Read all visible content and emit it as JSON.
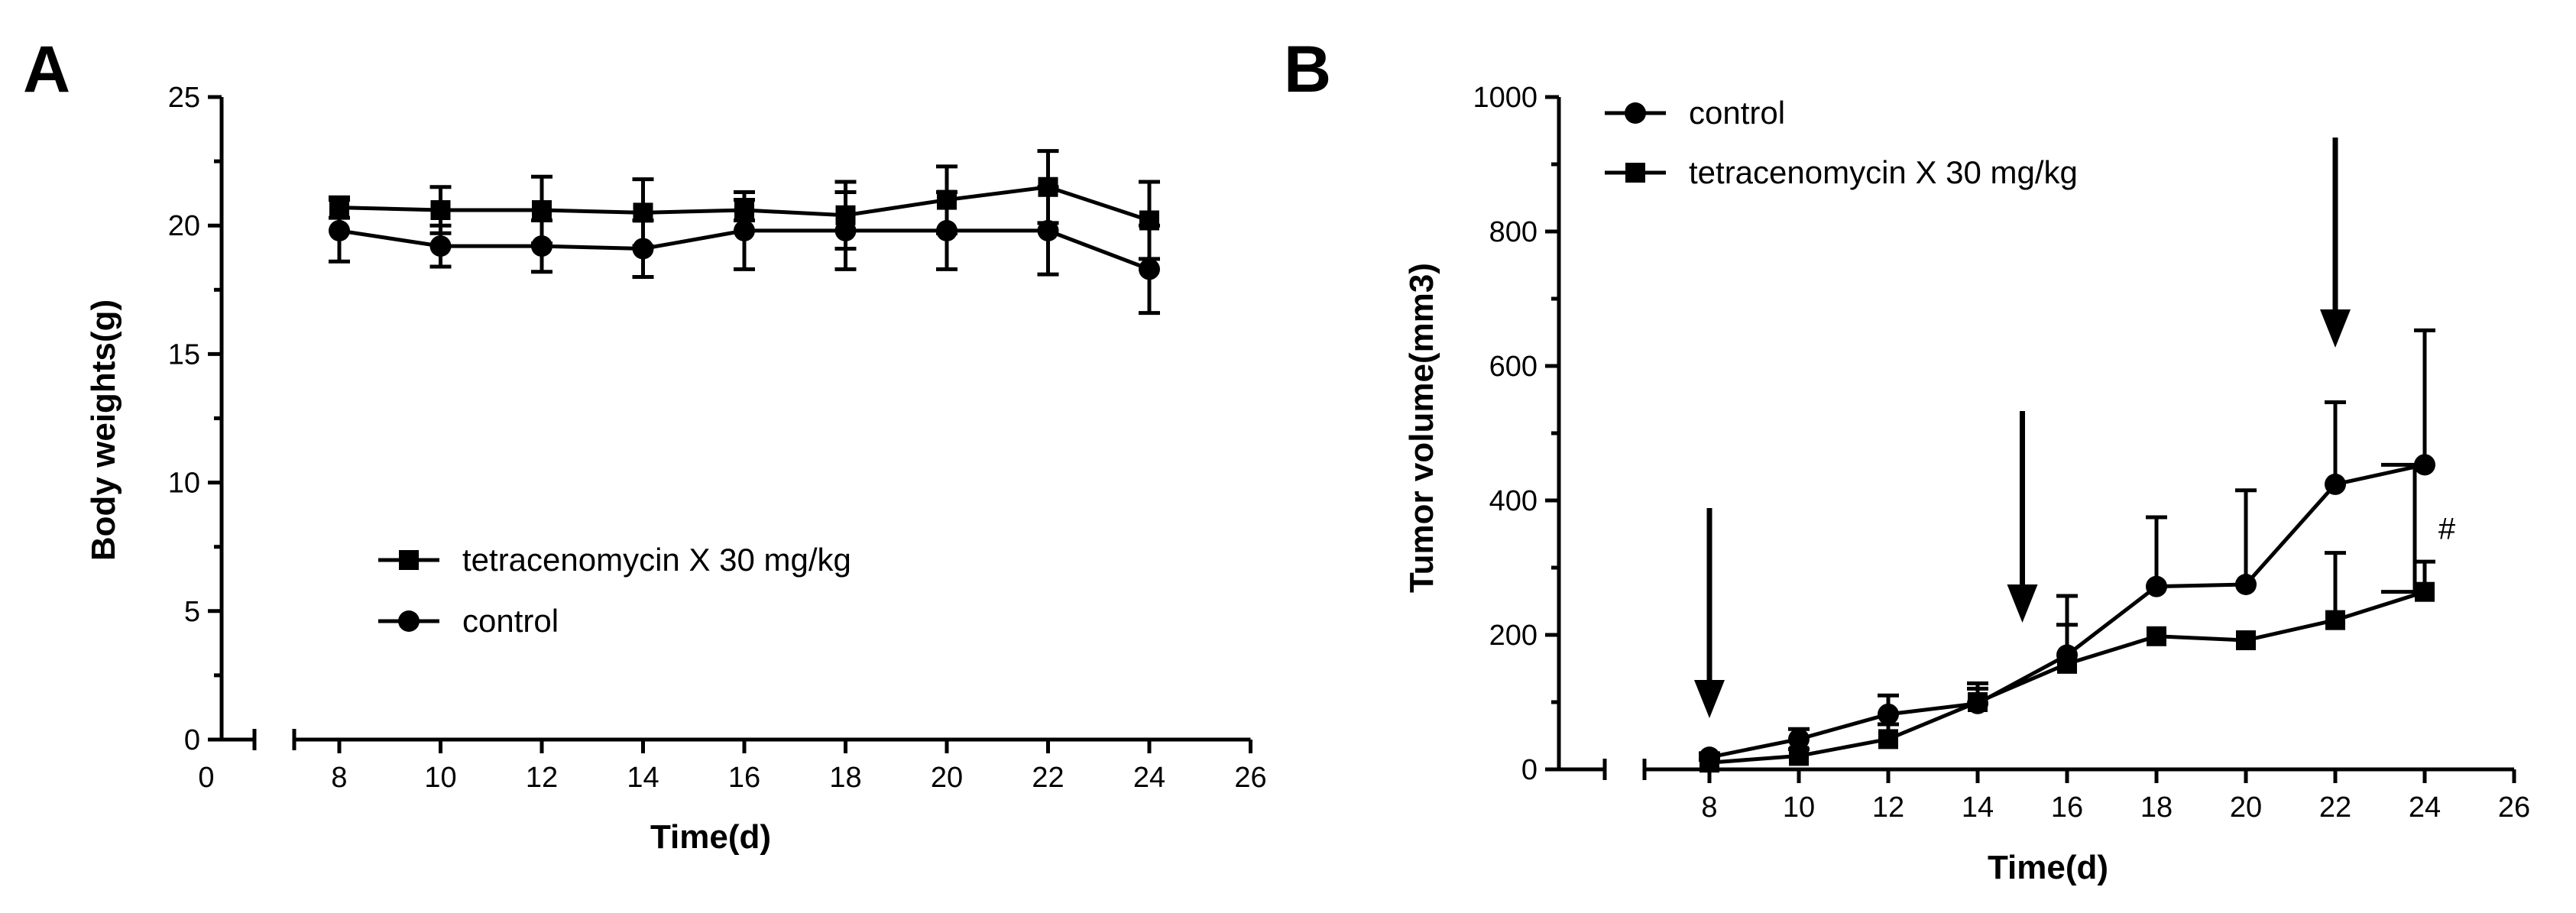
{
  "chart_data": [
    {
      "panel": "A",
      "type": "line",
      "ylabel": "Body weights(g)",
      "xlabel": "Time(d)",
      "ylim": [
        0,
        25
      ],
      "yticks": [
        0,
        5,
        10,
        15,
        20,
        25
      ],
      "xticks": [
        0,
        8,
        10,
        12,
        14,
        16,
        18,
        20,
        22,
        24,
        26
      ],
      "x_axis_break": true,
      "legend": [
        "tetracenomycin X 30 mg/kg",
        "control"
      ],
      "legend_position": "lower-center",
      "series": [
        {
          "name": "tetracenomycin X 30 mg/kg",
          "marker": "square",
          "x": [
            8,
            10,
            12,
            14,
            16,
            18,
            20,
            22,
            24
          ],
          "y": [
            20.7,
            20.6,
            20.6,
            20.5,
            20.6,
            20.4,
            21.0,
            21.5,
            20.2
          ],
          "error": [
            0.4,
            0.9,
            1.3,
            1.3,
            0.4,
            1.3,
            1.3,
            1.4,
            1.5
          ]
        },
        {
          "name": "control",
          "marker": "circle",
          "x": [
            8,
            10,
            12,
            14,
            16,
            18,
            20,
            22,
            24
          ],
          "y": [
            19.8,
            19.2,
            19.2,
            19.1,
            19.8,
            19.8,
            19.8,
            19.8,
            18.3
          ],
          "error": [
            1.2,
            0.8,
            1.0,
            1.1,
            1.5,
            1.5,
            1.5,
            1.7,
            1.7
          ]
        }
      ]
    },
    {
      "panel": "B",
      "type": "line",
      "ylabel": "Tumor volume(mm3)",
      "xlabel": "Time(d)",
      "ylim": [
        0,
        1000
      ],
      "yticks": [
        0,
        200,
        400,
        600,
        800,
        1000
      ],
      "xticks": [
        8,
        10,
        12,
        14,
        16,
        18,
        20,
        22,
        24,
        26
      ],
      "x_axis_break": true,
      "legend": [
        "control",
        "tetracenomycin X 30 mg/kg"
      ],
      "legend_position": "top-left",
      "series": [
        {
          "name": "control",
          "marker": "circle",
          "x": [
            8,
            10,
            12,
            14,
            16,
            18,
            20,
            22,
            24
          ],
          "y": [
            18,
            45,
            82,
            98,
            170,
            272,
            275,
            424,
            453
          ],
          "error": [
            6,
            15,
            28,
            30,
            88,
            103,
            140,
            122,
            200
          ]
        },
        {
          "name": "tetracenomycin X 30 mg/kg",
          "marker": "square",
          "x": [
            8,
            10,
            12,
            14,
            16,
            18,
            20,
            22,
            24
          ],
          "y": [
            10,
            20,
            45,
            100,
            157,
            198,
            192,
            222,
            264
          ],
          "error": [
            4,
            10,
            22,
            20,
            58,
            0,
            0,
            100,
            45
          ]
        }
      ],
      "arrows_at_x": [
        8,
        15,
        22
      ],
      "significance": {
        "label": "#"
      }
    }
  ]
}
